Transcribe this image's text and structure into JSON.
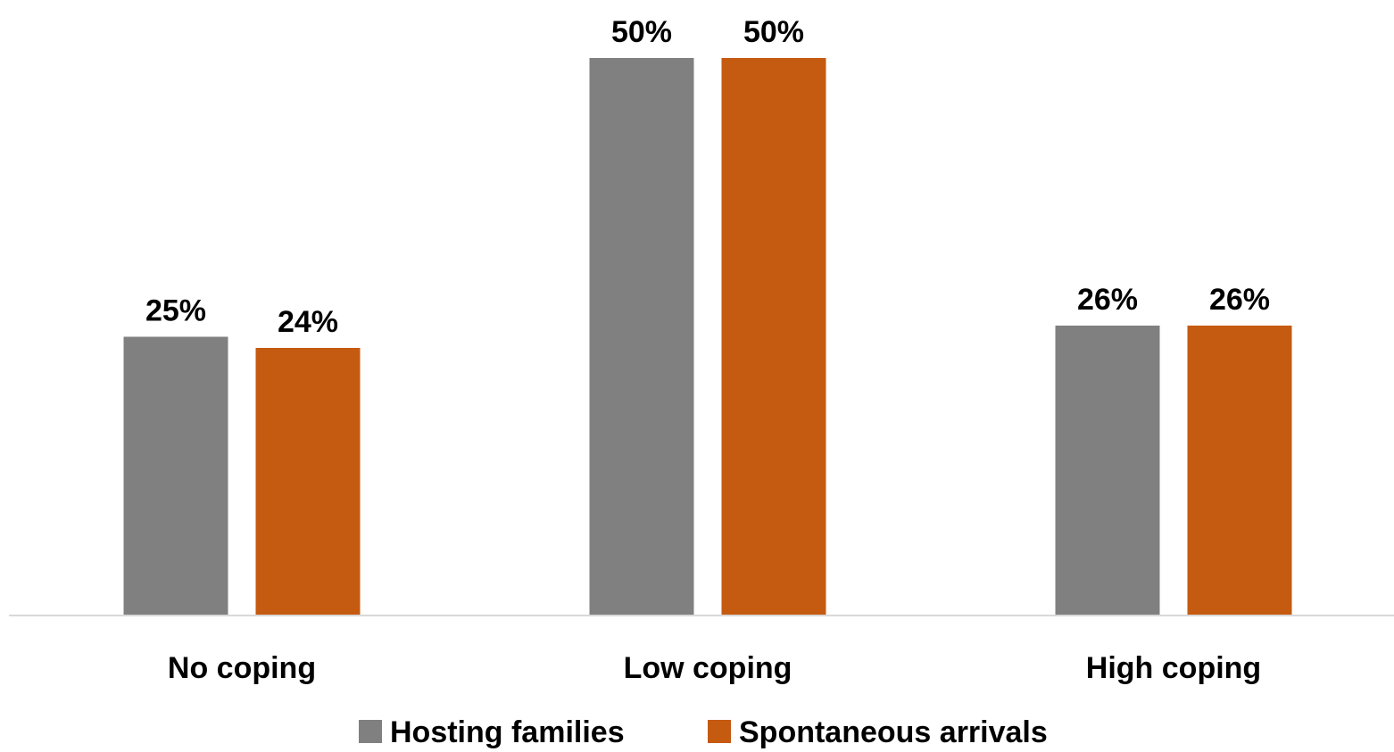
{
  "chart_data": {
    "type": "bar",
    "categories": [
      "No coping",
      "Low coping",
      "High coping"
    ],
    "series": [
      {
        "name": "Hosting families",
        "values": [
          25,
          50,
          26
        ],
        "labels": [
          "25%",
          "50%",
          "26%"
        ],
        "color": "#808080"
      },
      {
        "name": "Spontaneous arrivals",
        "values": [
          24,
          50,
          26
        ],
        "labels": [
          "24%",
          "50%",
          "26%"
        ],
        "color": "#c55a11"
      }
    ],
    "title": "",
    "xlabel": "",
    "ylabel": "",
    "ylim": [
      0,
      52
    ],
    "grid": false,
    "legend": "bottom",
    "axis_color": "#d9d9d9"
  }
}
